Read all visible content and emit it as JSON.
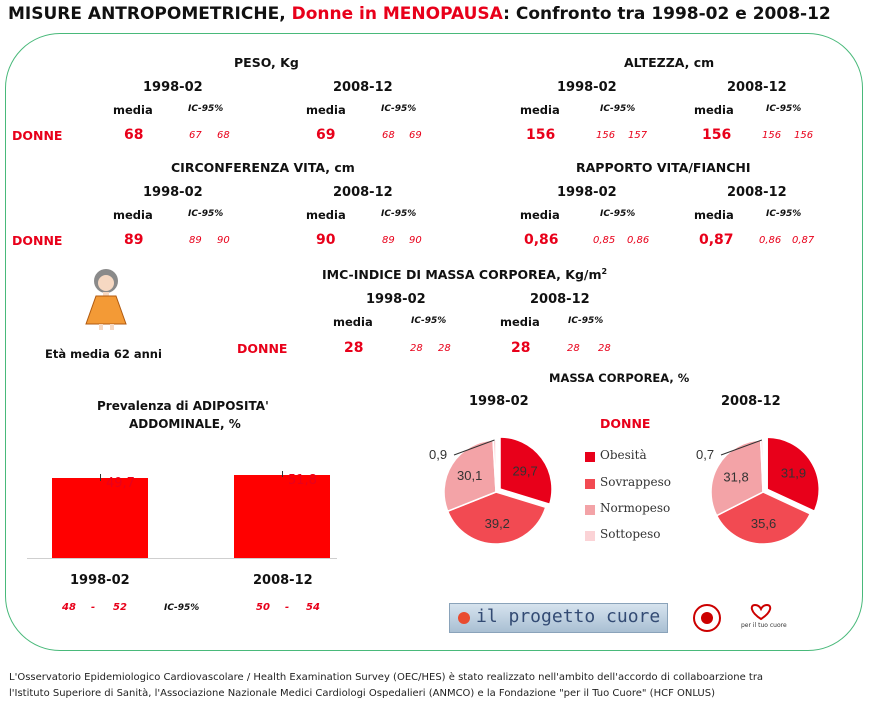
{
  "title": {
    "prefix": "MISURE ANTROPOMETRICHE, ",
    "highlight": "Donne in MENOPAUSA",
    "suffix": ": Confronto tra 1998-02 e 2008-12"
  },
  "labels": {
    "media": "media",
    "ic95": "IC-95%",
    "donne": "DONNE",
    "p1": "1998-02",
    "p2": "2008-12",
    "dash": "-"
  },
  "peso": {
    "title": "PESO, Kg",
    "p1": {
      "mean": "68",
      "lo": "67",
      "hi": "68"
    },
    "p2": {
      "mean": "69",
      "lo": "68",
      "hi": "69"
    }
  },
  "altezza": {
    "title": "ALTEZZA, cm",
    "p1": {
      "mean": "156",
      "lo": "156",
      "hi": "157"
    },
    "p2": {
      "mean": "156",
      "lo": "156",
      "hi": "156"
    }
  },
  "vita": {
    "title": "CIRCONFERENZA VITA, cm",
    "p1": {
      "mean": "89",
      "lo": "89",
      "hi": "90"
    },
    "p2": {
      "mean": "90",
      "lo": "89",
      "hi": "90"
    }
  },
  "rapporto": {
    "title": "RAPPORTO VITA/FIANCHI",
    "p1": {
      "mean": "0,86",
      "lo": "0,85",
      "hi": "0,86"
    },
    "p2": {
      "mean": "0,87",
      "lo": "0,86",
      "hi": "0,87"
    }
  },
  "imc": {
    "title": "IMC-INDICE DI MASSA CORPOREA, Kg/m",
    "sup": "2",
    "p1": {
      "mean": "28",
      "lo": "28",
      "hi": "28"
    },
    "p2": {
      "mean": "28",
      "lo": "28",
      "hi": "28"
    }
  },
  "eta": "Età media 62 anni",
  "adiposita": {
    "title_line1": "Prevalenza di ADIPOSITA'",
    "title_line2": "ADDOMINALE,  %",
    "ci1": {
      "lo": "48",
      "hi": "52"
    },
    "ci2": {
      "lo": "50",
      "hi": "54"
    }
  },
  "massa": {
    "title": "MASSA CORPOREA, %",
    "donne": "DONNE",
    "legend": [
      "Obesità",
      "Sovrappeso",
      "Normopeso",
      "Sottopeso"
    ]
  },
  "colors": {
    "obesita": "#e8001a",
    "sovrappeso": "#f24a52",
    "normopeso": "#f3a3a7",
    "sottopeso": "#fbd3d6",
    "border": "#49b97a"
  },
  "chart_data": [
    {
      "type": "bar",
      "title": "Prevalenza di ADIPOSITA' ADDOMINALE,  %",
      "categories": [
        "1998-02",
        "2008-12"
      ],
      "values": [
        49.7,
        51.8
      ],
      "value_labels": [
        "49,7",
        "51,8"
      ],
      "ci_low": [
        48,
        50
      ],
      "ci_high": [
        52,
        54
      ]
    },
    {
      "type": "pie",
      "title": "1998-02",
      "categories": [
        "Obesità",
        "Sovrappeso",
        "Normopeso",
        "Sottopeso"
      ],
      "values": [
        29.7,
        39.2,
        30.1,
        0.9
      ],
      "value_labels": [
        "29,7",
        "39,2",
        "30,1",
        "0,9"
      ]
    },
    {
      "type": "pie",
      "title": "2008-12",
      "categories": [
        "Obesità",
        "Sovrappeso",
        "Normopeso",
        "Sottopeso"
      ],
      "values": [
        31.9,
        35.6,
        31.8,
        0.7
      ],
      "value_labels": [
        "31,9",
        "35,6",
        "31,8",
        "0,7"
      ]
    }
  ],
  "logos": {
    "progetto": "il progetto cuore",
    "hcf": "per il tuo cuore"
  },
  "footer": {
    "line1": "L'Osservatorio Epidemiologico Cardiovascolare / Health Examination Survey (OEC/HES) è stato realizzato nell'ambito dell'accordo di collaboarzione tra",
    "line2": "l'Istituto Superiore di Sanità, l'Associazione Nazionale Medici Cardiologi Ospedalieri (ANMCO) e la Fondazione \"per il Tuo Cuore\" (HCF ONLUS)"
  }
}
